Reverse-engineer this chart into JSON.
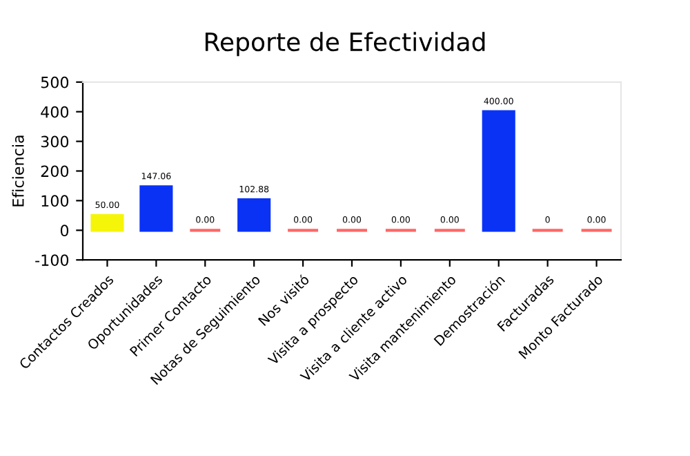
{
  "chart_data": {
    "type": "bar",
    "title": "Reporte de Efectividad",
    "ylabel": "Eficiencia",
    "categories": [
      "Contactos Creados",
      "Oportunidades",
      "Primer Contacto",
      "Notas de Seguimiento",
      "Nos visitó",
      "Visita a prospecto",
      "Visita a cliente activo",
      "Visita mantenimiento",
      "Demostración",
      "Facturadas",
      "Monto Facturado"
    ],
    "values": [
      50,
      147.06,
      0,
      102.88,
      0,
      0,
      0,
      0,
      400,
      0,
      0
    ],
    "value_labels": [
      "50.00",
      "147.06",
      "0.00",
      "102.88",
      "0.00",
      "0.00",
      "0.00",
      "0.00",
      "400.00",
      "0",
      "0.00"
    ],
    "colors": [
      "#f5f50a",
      "#0a32f5",
      "#ff6666",
      "#0a32f5",
      "#ff6666",
      "#ff6666",
      "#ff6666",
      "#ff6666",
      "#0a32f5",
      "#ff6666",
      "#ff6666"
    ],
    "ylim": [
      -100,
      500
    ],
    "yticks": [
      -100,
      0,
      100,
      200,
      300,
      400,
      500
    ],
    "grid": false,
    "legend": false
  }
}
